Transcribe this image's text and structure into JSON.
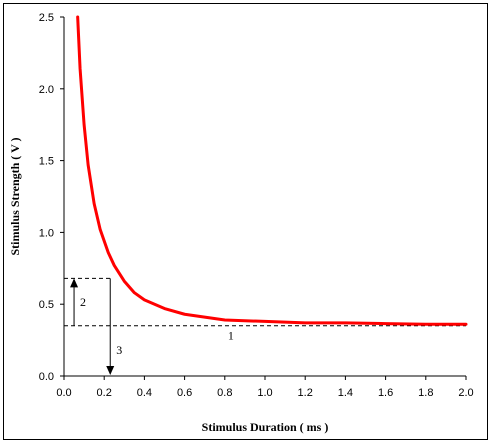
{
  "chart_data": {
    "type": "line",
    "title": "",
    "xlabel": "Stimulus Duration ( ms )",
    "ylabel": "Stimulus Strength ( V )",
    "xlim": [
      0,
      2.0
    ],
    "ylim": [
      0,
      2.5
    ],
    "x_ticks": [
      "0.0",
      "0.2",
      "0.4",
      "0.6",
      "0.8",
      "1.0",
      "1.2",
      "1.4",
      "1.6",
      "1.8",
      "2.0"
    ],
    "y_ticks": [
      "0.0",
      "0.5",
      "1.0",
      "1.5",
      "2.0",
      "2.5"
    ],
    "grid": false,
    "legend": "none",
    "series": [
      {
        "color": "#ff0000",
        "x": [
          0.068,
          0.08,
          0.1,
          0.12,
          0.15,
          0.18,
          0.22,
          0.25,
          0.3,
          0.35,
          0.4,
          0.5,
          0.6,
          0.7,
          0.8,
          1.0,
          1.2,
          1.4,
          1.6,
          1.8,
          2.0
        ],
        "y": [
          2.5,
          2.14,
          1.75,
          1.47,
          1.2,
          1.02,
          0.86,
          0.77,
          0.66,
          0.58,
          0.53,
          0.47,
          0.43,
          0.41,
          0.39,
          0.38,
          0.37,
          0.37,
          0.365,
          0.36,
          0.36
        ]
      }
    ],
    "reference_lines": {
      "rheobase": 0.35,
      "double_rheobase": 0.68,
      "chronaxie": 0.23,
      "arrow_2_x": 0.05
    },
    "annotations": [
      "1",
      "2",
      "3"
    ],
    "colors": {
      "curve": "#ff0000",
      "axes": "#000000"
    }
  }
}
